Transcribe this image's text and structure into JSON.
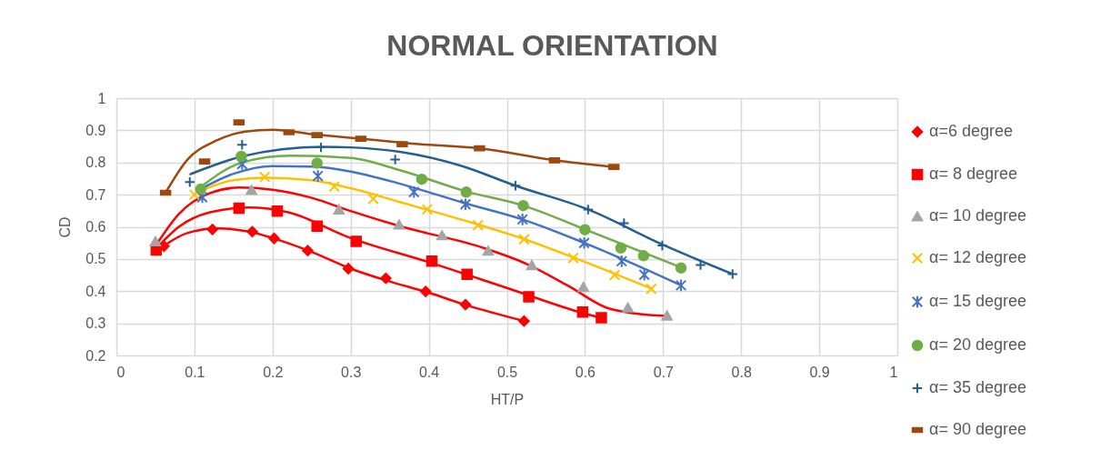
{
  "chart_data": {
    "type": "scatter",
    "title": "NORMAL ORIENTATION",
    "xlabel": "HT/P",
    "ylabel": "CD",
    "xlim": [
      0,
      1
    ],
    "xticks": [
      0,
      0.1,
      0.2,
      0.3,
      0.4,
      0.5,
      0.6,
      0.7,
      0.8,
      0.9,
      1
    ],
    "ylim": [
      0.2,
      1
    ],
    "yticks": [
      0.2,
      0.3,
      0.4,
      0.5,
      0.6,
      0.7,
      0.8,
      0.9,
      1
    ],
    "grid": true,
    "legend": "right",
    "series": [
      {
        "name": "α=6 degree",
        "type": "scatter",
        "marker": "diamond",
        "color": "#ff0000",
        "x": [
          0.061,
          0.123,
          0.174,
          0.202,
          0.245,
          0.297,
          0.345,
          0.396,
          0.447,
          0.522
        ],
        "values": [
          0.54,
          0.592,
          0.585,
          0.564,
          0.526,
          0.47,
          0.44,
          0.399,
          0.358,
          0.307
        ]
      },
      {
        "name": "α= 8 degree",
        "type": "scatter",
        "marker": "square",
        "color": "#ff0000",
        "x": [
          0.051,
          0.157,
          0.206,
          0.257,
          0.307,
          0.404,
          0.449,
          0.528,
          0.597,
          0.621
        ],
        "values": [
          0.528,
          0.658,
          0.649,
          0.602,
          0.555,
          0.493,
          0.452,
          0.382,
          0.335,
          0.317
        ]
      },
      {
        "name": "α= 10 degree",
        "type": "scatter",
        "marker": "triangle",
        "color": "#a5a5a5",
        "x": [
          0.05,
          0.173,
          0.285,
          0.362,
          0.417,
          0.476,
          0.532,
          0.598,
          0.655,
          0.705
        ],
        "values": [
          0.555,
          0.715,
          0.654,
          0.607,
          0.574,
          0.526,
          0.481,
          0.413,
          0.349,
          0.324
        ]
      },
      {
        "name": "α= 12 degree",
        "type": "scatter",
        "marker": "x",
        "color": "#ffc000",
        "x": [
          0.1,
          0.19,
          0.279,
          0.329,
          0.398,
          0.463,
          0.522,
          0.585,
          0.638,
          0.685
        ],
        "values": [
          0.7,
          0.755,
          0.725,
          0.687,
          0.654,
          0.605,
          0.561,
          0.503,
          0.45,
          0.407
        ]
      },
      {
        "name": "α= 15 degree",
        "type": "scatter",
        "marker": "cross",
        "color": "#4472c4",
        "x": [
          0.11,
          0.161,
          0.258,
          0.381,
          0.447,
          0.52,
          0.599,
          0.647,
          0.676,
          0.723
        ],
        "values": [
          0.692,
          0.795,
          0.758,
          0.708,
          0.67,
          0.623,
          0.55,
          0.493,
          0.451,
          0.418
        ]
      },
      {
        "name": "α= 20 degree",
        "type": "scatter",
        "marker": "circle",
        "color": "#70ad47",
        "x": [
          0.108,
          0.16,
          0.257,
          0.391,
          0.448,
          0.521,
          0.6,
          0.646,
          0.675,
          0.723
        ],
        "values": [
          0.717,
          0.819,
          0.798,
          0.748,
          0.708,
          0.666,
          0.591,
          0.534,
          0.51,
          0.472
        ]
      },
      {
        "name": "α= 35 degree",
        "type": "scatter",
        "marker": "plus",
        "color": "#255e91",
        "x": [
          0.094,
          0.161,
          0.262,
          0.357,
          0.511,
          0.604,
          0.65,
          0.699,
          0.748,
          0.789
        ],
        "values": [
          0.739,
          0.855,
          0.847,
          0.809,
          0.728,
          0.654,
          0.611,
          0.542,
          0.481,
          0.453
        ]
      },
      {
        "name": "α= 90 degree",
        "type": "scatter",
        "color": "#9e480e",
        "x": [
          0.063,
          0.113,
          0.157,
          0.221,
          0.257,
          0.313,
          0.366,
          0.465,
          0.561,
          0.637
        ],
        "values": [
          0.706,
          0.803,
          0.925,
          0.894,
          0.885,
          0.874,
          0.857,
          0.844,
          0.807,
          0.786
        ]
      },
      {
        "type": "line",
        "color": "#ff0000",
        "x": [
          0.06,
          0.09,
          0.13,
          0.17,
          0.2,
          0.25,
          0.3,
          0.35,
          0.4,
          0.45,
          0.522
        ],
        "values": [
          0.54,
          0.58,
          0.595,
          0.585,
          0.565,
          0.522,
          0.47,
          0.43,
          0.395,
          0.355,
          0.307
        ]
      },
      {
        "type": "line",
        "color": "#ff0000",
        "x": [
          0.05,
          0.08,
          0.12,
          0.17,
          0.22,
          0.3,
          0.4,
          0.5,
          0.6,
          0.621
        ],
        "values": [
          0.53,
          0.6,
          0.645,
          0.66,
          0.645,
          0.565,
          0.49,
          0.41,
          0.33,
          0.317
        ]
      },
      {
        "type": "line",
        "color": "#ff0000",
        "x": [
          0.05,
          0.08,
          0.12,
          0.157,
          0.2,
          0.25,
          0.3,
          0.363,
          0.468,
          0.526,
          0.581,
          0.627,
          0.666,
          0.705
        ],
        "values": [
          0.54,
          0.64,
          0.705,
          0.722,
          0.715,
          0.69,
          0.649,
          0.602,
          0.536,
          0.484,
          0.413,
          0.349,
          0.33,
          0.323
        ]
      },
      {
        "type": "line",
        "color": "#ffc000",
        "x": [
          0.106,
          0.15,
          0.19,
          0.25,
          0.3,
          0.363,
          0.463,
          0.522,
          0.585,
          0.685
        ],
        "values": [
          0.71,
          0.745,
          0.753,
          0.745,
          0.72,
          0.677,
          0.607,
          0.562,
          0.505,
          0.408
        ]
      },
      {
        "type": "line",
        "color": "#4472c4",
        "x": [
          0.106,
          0.15,
          0.2,
          0.25,
          0.3,
          0.363,
          0.447,
          0.52,
          0.599,
          0.723
        ],
        "values": [
          0.715,
          0.765,
          0.789,
          0.787,
          0.772,
          0.734,
          0.673,
          0.623,
          0.55,
          0.418
        ]
      },
      {
        "type": "line",
        "color": "#70ad47",
        "x": [
          0.106,
          0.161,
          0.223,
          0.3,
          0.363,
          0.448,
          0.521,
          0.6,
          0.723
        ],
        "values": [
          0.72,
          0.8,
          0.821,
          0.814,
          0.776,
          0.71,
          0.666,
          0.592,
          0.474
        ]
      },
      {
        "type": "line",
        "color": "#255e91",
        "x": [
          0.095,
          0.161,
          0.2625,
          0.3,
          0.363,
          0.441,
          0.511,
          0.604,
          0.699,
          0.789
        ],
        "values": [
          0.764,
          0.819,
          0.849,
          0.847,
          0.833,
          0.79,
          0.728,
          0.654,
          0.545,
          0.453
        ]
      },
      {
        "type": "line",
        "color": "#9e480e",
        "x": [
          0.063,
          0.091,
          0.126,
          0.165,
          0.2,
          0.255,
          0.313,
          0.3875,
          0.465,
          0.561,
          0.637
        ],
        "values": [
          0.706,
          0.809,
          0.866,
          0.896,
          0.902,
          0.887,
          0.874,
          0.857,
          0.844,
          0.807,
          0.786
        ]
      }
    ]
  }
}
